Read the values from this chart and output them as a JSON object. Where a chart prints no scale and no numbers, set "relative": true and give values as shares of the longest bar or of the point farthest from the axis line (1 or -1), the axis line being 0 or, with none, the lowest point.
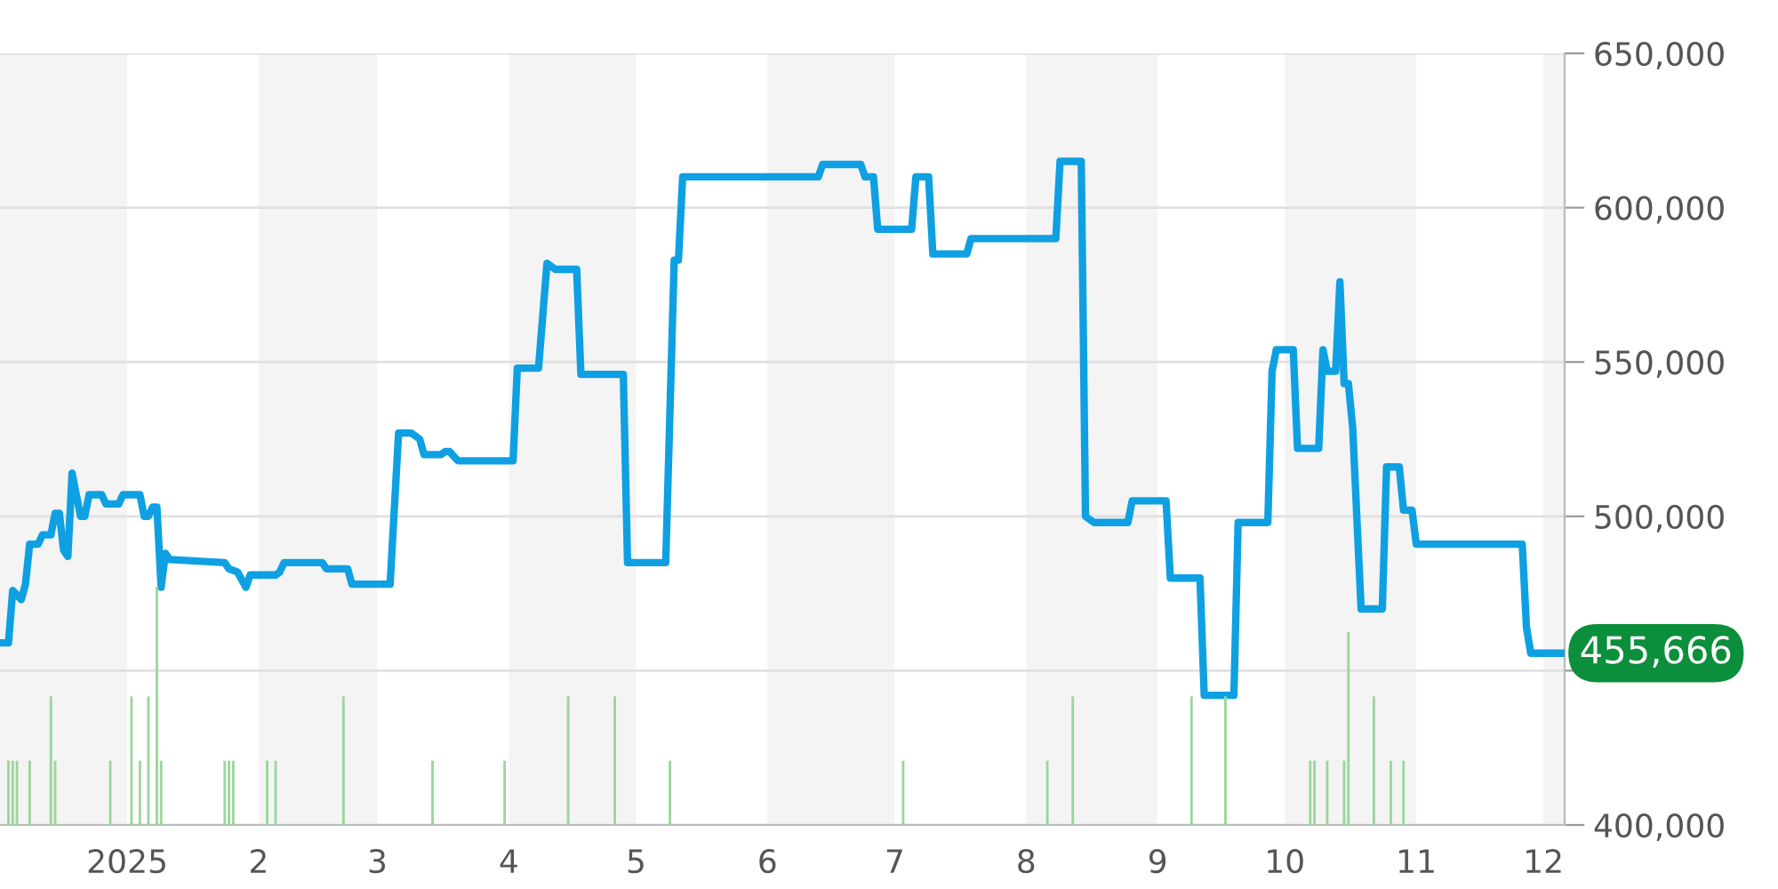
{
  "chart_data": [
    {
      "type": "line",
      "x": [
        "2024-12-02",
        "2024-12-04",
        "2024-12-05",
        "2024-12-07",
        "2024-12-08",
        "2024-12-09",
        "2024-12-11",
        "2024-12-12",
        "2024-12-14",
        "2024-12-15",
        "2024-12-16",
        "2024-12-17",
        "2024-12-18",
        "2024-12-19",
        "2024-12-21",
        "2024-12-22",
        "2024-12-23",
        "2024-12-26",
        "2024-12-27",
        "2024-12-30",
        "2024-12-31",
        "2025-01-04",
        "2025-01-05",
        "2025-01-06",
        "2025-01-07",
        "2025-01-08",
        "2025-01-09",
        "2025-01-10",
        "2025-01-11",
        "2025-01-24",
        "2025-01-25",
        "2025-01-27",
        "2025-01-29",
        "2025-01-30",
        "2025-02-05",
        "2025-02-06",
        "2025-02-07",
        "2025-02-16",
        "2025-02-17",
        "2025-02-22",
        "2025-02-23",
        "2025-03-04",
        "2025-03-06",
        "2025-03-09",
        "2025-03-11",
        "2025-03-12",
        "2025-03-16",
        "2025-03-17",
        "2025-03-18",
        "2025-03-20",
        "2025-04-02",
        "2025-04-03",
        "2025-04-08",
        "2025-04-10",
        "2025-04-12",
        "2025-04-17",
        "2025-04-18",
        "2025-04-28",
        "2025-04-29",
        "2025-05-08",
        "2025-05-10",
        "2025-05-11",
        "2025-05-12",
        "2025-06-13",
        "2025-06-14",
        "2025-06-23",
        "2025-06-24",
        "2025-06-26",
        "2025-06-27",
        "2025-07-05",
        "2025-07-06",
        "2025-07-09",
        "2025-07-10",
        "2025-07-18",
        "2025-07-19",
        "2025-08-08",
        "2025-08-09",
        "2025-08-14",
        "2025-08-15",
        "2025-08-17",
        "2025-08-25",
        "2025-08-26",
        "2025-09-03",
        "2025-09-04",
        "2025-09-11",
        "2025-09-12",
        "2025-09-19",
        "2025-09-20",
        "2025-09-27",
        "2025-09-28",
        "2025-09-29",
        "2025-10-03",
        "2025-10-04",
        "2025-10-09",
        "2025-10-10",
        "2025-10-11",
        "2025-10-13",
        "2025-10-14",
        "2025-10-15",
        "2025-10-16",
        "2025-10-17",
        "2025-10-19",
        "2025-10-24",
        "2025-10-25",
        "2025-10-28",
        "2025-10-29",
        "2025-10-31",
        "2025-11-01",
        "2025-11-26",
        "2025-11-27",
        "2025-11-28",
        "2025-12-06"
      ],
      "series": [
        {
          "color": "#0ea0e2",
          "values": [
            459000,
            459000,
            476000,
            473000,
            478000,
            491000,
            491000,
            494000,
            494000,
            501000,
            501000,
            489000,
            487000,
            514000,
            500000,
            500000,
            507000,
            507000,
            504000,
            504000,
            507000,
            507000,
            500000,
            500000,
            503000,
            503000,
            477000,
            488000,
            486000,
            485000,
            483000,
            482000,
            477000,
            481000,
            481000,
            482000,
            485000,
            485000,
            483000,
            483000,
            478000,
            478000,
            527000,
            527000,
            525000,
            520000,
            520000,
            521000,
            521000,
            518000,
            518000,
            548000,
            548000,
            582000,
            580000,
            580000,
            546000,
            546000,
            485000,
            485000,
            583000,
            583000,
            610000,
            610000,
            614000,
            614000,
            610000,
            610000,
            593000,
            593000,
            610000,
            610000,
            585000,
            585000,
            590000,
            590000,
            615000,
            615000,
            500000,
            498000,
            498000,
            505000,
            505000,
            480000,
            480000,
            442000,
            442000,
            498000,
            498000,
            547000,
            554000,
            554000,
            522000,
            522000,
            554000,
            547000,
            547000,
            576000,
            543000,
            543000,
            529000,
            470000,
            470000,
            516000,
            516000,
            502000,
            502000,
            491000,
            491000,
            464000,
            455666,
            455666
          ]
        }
      ],
      "xlim": [
        "2024-12-02",
        "2025-12-06"
      ],
      "ylim": [
        400000,
        650000
      ],
      "xticks": [
        {
          "value": "2025-01-01",
          "label": "2025"
        },
        {
          "value": "2025-02-01",
          "label": "2"
        },
        {
          "value": "2025-03-01",
          "label": "3"
        },
        {
          "value": "2025-04-01",
          "label": "4"
        },
        {
          "value": "2025-05-01",
          "label": "5"
        },
        {
          "value": "2025-06-01",
          "label": "6"
        },
        {
          "value": "2025-07-01",
          "label": "7"
        },
        {
          "value": "2025-08-01",
          "label": "8"
        },
        {
          "value": "2025-09-01",
          "label": "9"
        },
        {
          "value": "2025-10-01",
          "label": "10"
        },
        {
          "value": "2025-11-01",
          "label": "11"
        },
        {
          "value": "2025-12-01",
          "label": "12"
        }
      ],
      "yticks": [
        {
          "value": 400000,
          "label": "400,000"
        },
        {
          "value": 450000,
          "label": null
        },
        {
          "value": 500000,
          "label": "500,000"
        },
        {
          "value": 550000,
          "label": "550,000"
        },
        {
          "value": 600000,
          "label": "600,000"
        },
        {
          "value": 650000,
          "label": "650,000"
        }
      ],
      "grid": "y",
      "bands": [
        {
          "axis": "x",
          "from": "2024-12-02",
          "to": "2025-01-01",
          "color": "#f4f4f4"
        },
        {
          "axis": "x",
          "from": "2025-02-01",
          "to": "2025-03-01",
          "color": "#f4f4f4"
        },
        {
          "axis": "x",
          "from": "2025-04-01",
          "to": "2025-05-01",
          "color": "#f4f4f4"
        },
        {
          "axis": "x",
          "from": "2025-06-01",
          "to": "2025-07-01",
          "color": "#f4f4f4"
        },
        {
          "axis": "x",
          "from": "2025-08-01",
          "to": "2025-09-01",
          "color": "#f4f4f4"
        },
        {
          "axis": "x",
          "from": "2025-10-01",
          "to": "2025-11-01",
          "color": "#f4f4f4"
        },
        {
          "axis": "x",
          "from": "2025-12-01",
          "to": "2025-12-06",
          "color": "#f4f4f4"
        }
      ],
      "annotations": [
        {
          "text": "455,666",
          "x": "2025-12-06",
          "y": 455666
        }
      ]
    },
    {
      "type": "bar",
      "relative": true,
      "tick_labels": false,
      "xlim": [
        "2024-12-02",
        "2025-12-06"
      ],
      "color": "#9ad69a",
      "x": [
        "2024-12-04",
        "2024-12-05",
        "2024-12-06",
        "2024-12-09",
        "2024-12-14",
        "2024-12-15",
        "2024-12-28",
        "2025-01-02",
        "2025-01-04",
        "2025-01-06",
        "2025-01-08",
        "2025-01-09",
        "2025-01-24",
        "2025-01-25",
        "2025-01-26",
        "2025-02-03",
        "2025-02-05",
        "2025-02-21",
        "2025-03-14",
        "2025-03-31",
        "2025-04-15",
        "2025-04-26",
        "2025-05-09",
        "2025-07-03",
        "2025-08-06",
        "2025-08-12",
        "2025-09-09",
        "2025-09-17",
        "2025-10-07",
        "2025-10-08",
        "2025-10-11",
        "2025-10-15",
        "2025-10-16",
        "2025-10-22",
        "2025-10-26",
        "2025-10-29"
      ],
      "values": [
        0.27,
        0.27,
        0.27,
        0.27,
        0.54,
        0.27,
        0.27,
        0.54,
        0.27,
        0.54,
        1,
        0.27,
        0.27,
        0.27,
        0.27,
        0.27,
        0.27,
        0.54,
        0.27,
        0.27,
        0.54,
        0.54,
        0.27,
        0.27,
        0.27,
        0.54,
        0.54,
        0.54,
        0.27,
        0.27,
        0.27,
        0.27,
        0.81,
        0.54,
        0.27,
        0.27
      ]
    }
  ]
}
